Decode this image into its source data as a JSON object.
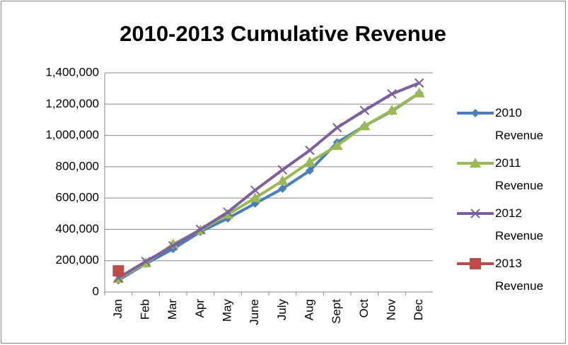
{
  "chart_data": {
    "type": "line",
    "title": "2010-2013 Cumulative Revenue",
    "categories": [
      "Jan",
      "Feb",
      "Mar",
      "Apr",
      "May",
      "June",
      "July",
      "Aug",
      "Sept",
      "Oct",
      "Nov",
      "Dec"
    ],
    "series": [
      {
        "name": "2010 Revenue",
        "color": "#4a7ebb",
        "marker": "diamond",
        "values": [
          75000,
          180000,
          275000,
          385000,
          470000,
          565000,
          660000,
          775000,
          955000,
          1060000,
          1155000,
          1270000
        ]
      },
      {
        "name": "2011 Revenue",
        "color": "#98b954",
        "marker": "triangle",
        "values": [
          85000,
          185000,
          305000,
          395000,
          495000,
          600000,
          710000,
          830000,
          935000,
          1060000,
          1160000,
          1270000
        ]
      },
      {
        "name": "2012 Revenue",
        "color": "#7d5fa0",
        "marker": "x",
        "values": [
          90000,
          195000,
          295000,
          400000,
          510000,
          650000,
          780000,
          905000,
          1050000,
          1160000,
          1265000,
          1335000
        ]
      },
      {
        "name": "2013 Revenue",
        "color": "#be4b48",
        "marker": "square",
        "values": [
          135000,
          null,
          null,
          null,
          null,
          null,
          null,
          null,
          null,
          null,
          null,
          null
        ]
      }
    ],
    "ylim": [
      0,
      1400000
    ],
    "yticks": [
      0,
      {
        "value": 200000,
        "label": "200,000"
      },
      {
        "value": 400000,
        "label": "400,000"
      },
      {
        "value": 600000,
        "label": "600,000"
      },
      {
        "value": 800000,
        "label": "800,000"
      },
      {
        "value": 1000000,
        "label": "1,000,000"
      },
      {
        "value": 1200000,
        "label": "1,200,000"
      },
      {
        "value": 1400000,
        "label": "1,400,000"
      }
    ],
    "grid": true,
    "legend": "right"
  }
}
